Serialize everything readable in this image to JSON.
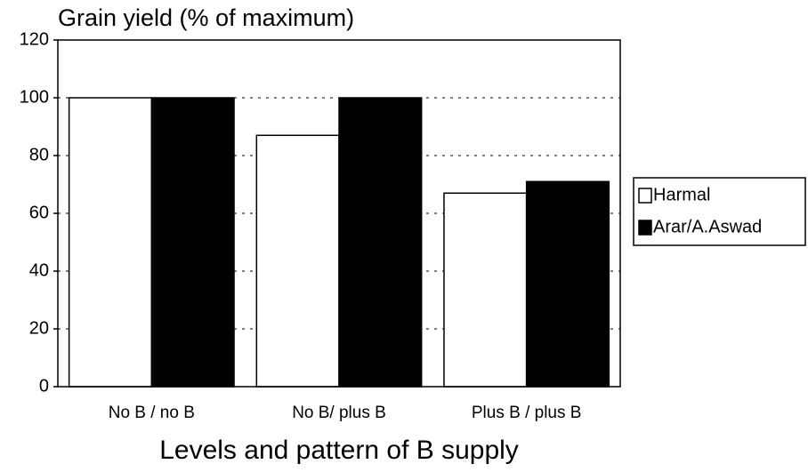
{
  "chart_data": {
    "type": "bar",
    "title": "Grain yield (% of maximum)",
    "x_label": "Levels and pattern of B supply",
    "categories": [
      "No B / no B",
      "No B/ plus B",
      "Plus B / plus B"
    ],
    "series": [
      {
        "name": "Harmal",
        "color": "#ffffff",
        "values": [
          100,
          87,
          67
        ]
      },
      {
        "name": "Arar/A.Aswad",
        "color": "#000000",
        "values": [
          100,
          100,
          71
        ]
      }
    ],
    "ylim": [
      0,
      120
    ],
    "yticks": [
      0,
      20,
      40,
      60,
      80,
      100,
      120
    ],
    "grid": true,
    "legend": "right"
  }
}
